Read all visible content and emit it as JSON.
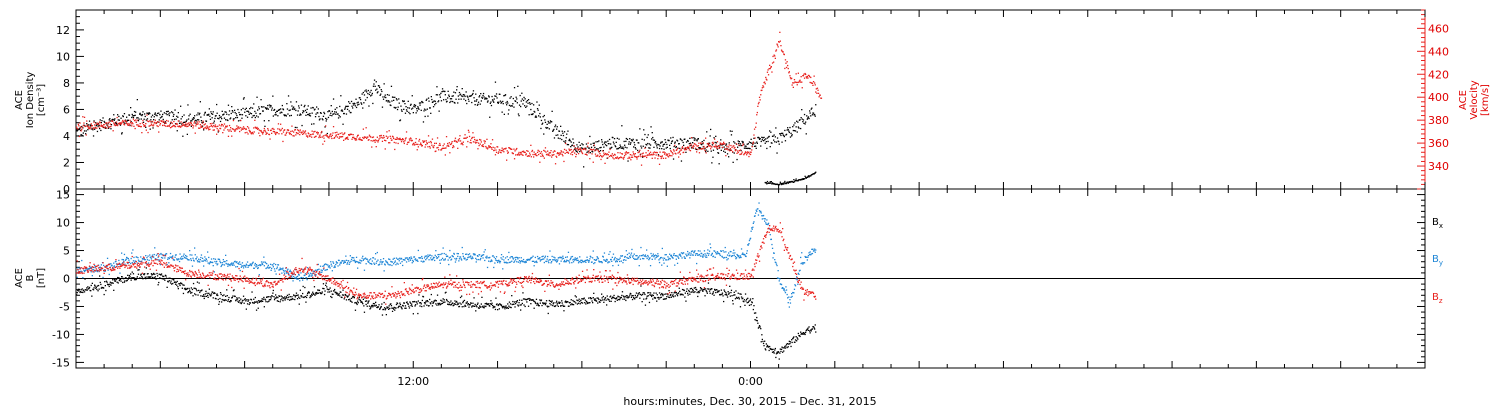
{
  "colors": {
    "black": "#000000",
    "red": "#e8221e",
    "blue": "#1f86d6"
  },
  "chart_data": [
    {
      "type": "scatter",
      "panel": "top",
      "ylabel_lines": [
        "ACE",
        "Ion Density",
        "[cm⁻³]"
      ],
      "ylim": [
        0,
        13.5
      ],
      "yticks": [
        0,
        2,
        4,
        6,
        8,
        10,
        12
      ],
      "y2label_lines": [
        "ACE",
        "Velocity",
        "[km/s]"
      ],
      "y2lim": [
        320,
        476
      ],
      "y2ticks": [
        340,
        360,
        380,
        400,
        420,
        440,
        460
      ],
      "x_hours_range": [
        0,
        48
      ],
      "series": [
        {
          "color": "#000000",
          "axis": "left",
          "spread": 0.45,
          "x": [
            0,
            1,
            2,
            3,
            4,
            5,
            6,
            7,
            8,
            9,
            10,
            10.6,
            11,
            12,
            13,
            14,
            15,
            16,
            17,
            18,
            19,
            20,
            21,
            22,
            23,
            24,
            24.5,
            25,
            25.5,
            26.3
          ],
          "y": [
            4.3,
            5.0,
            5.5,
            5.5,
            5.3,
            5.5,
            5.7,
            6.0,
            6.0,
            5.5,
            6.5,
            7.8,
            6.8,
            6.0,
            7.0,
            6.8,
            6.8,
            6.5,
            4.5,
            3.0,
            3.5,
            3.5,
            3.5,
            3.5,
            3.0,
            3.5,
            3.5,
            3.8,
            4.5,
            6.0
          ]
        },
        {
          "color": "#000000",
          "axis": "left",
          "spread": 0.05,
          "x": [
            24.5,
            25.0,
            25.5,
            26.0,
            26.3
          ],
          "y": [
            0.5,
            0.4,
            0.6,
            0.9,
            1.3
          ]
        },
        {
          "color": "#e8221e",
          "axis": "right",
          "spread": 3,
          "x": [
            0,
            2,
            4,
            6,
            8,
            10,
            12,
            13,
            14,
            15,
            16,
            17,
            18,
            19,
            20,
            21,
            22,
            23,
            24,
            24.3,
            25,
            25.5,
            26,
            26.5
          ],
          "y": [
            375,
            378,
            377,
            372,
            369,
            366,
            362,
            357,
            364,
            355,
            352,
            351,
            354,
            350,
            350,
            350,
            358,
            359,
            350,
            400,
            450,
            410,
            420,
            400
          ]
        }
      ]
    },
    {
      "type": "scatter",
      "panel": "bottom",
      "ylabel_lines": [
        "ACE",
        "B",
        "[nT]"
      ],
      "ylim": [
        -16,
        16
      ],
      "yticks": [
        -15,
        -10,
        -5,
        0,
        5,
        10,
        15
      ],
      "x_hours_range": [
        0,
        48
      ],
      "xticks": [
        {
          "hour": 12,
          "label": "12:00"
        },
        {
          "hour": 24,
          "label": "0:00"
        }
      ],
      "xlabel": "hours:minutes, Dec. 30, 2015 – Dec. 31, 2015",
      "zero_line": true,
      "series": [
        {
          "name": "Bx",
          "color": "#000000",
          "spread": 0.6,
          "x": [
            0,
            1,
            2,
            3,
            4,
            5,
            6,
            7,
            8,
            9,
            10,
            11,
            12,
            13,
            14,
            15,
            16,
            17,
            18,
            19,
            20,
            21,
            22,
            23,
            23.5,
            24,
            24.5,
            25,
            25.5,
            26,
            26.3
          ],
          "y": [
            -2,
            -1,
            0.5,
            0.5,
            -2,
            -3,
            -4,
            -3.5,
            -3,
            -2,
            -4,
            -5,
            -4.5,
            -4,
            -4.5,
            -5,
            -4,
            -4.5,
            -4,
            -3.5,
            -3,
            -3,
            -2,
            -2.5,
            -3,
            -4,
            -12,
            -13,
            -11,
            -9,
            -9
          ]
        },
        {
          "name": "By",
          "color": "#1f86d6",
          "spread": 0.6,
          "x": [
            0,
            1,
            2,
            3,
            4,
            5,
            6,
            7,
            8,
            9,
            10,
            11,
            12,
            13,
            14,
            15,
            16,
            17,
            18,
            19,
            20,
            21,
            22,
            23,
            23.8,
            24.2,
            24.6,
            25,
            25.4,
            25.8,
            26.3
          ],
          "y": [
            1.5,
            2.0,
            3.5,
            4.0,
            4.0,
            3.0,
            2.5,
            2.5,
            0,
            2.5,
            3.5,
            3.0,
            3.5,
            4.0,
            4.0,
            3.5,
            3.5,
            3.5,
            3.5,
            3.5,
            4.0,
            4.0,
            4.5,
            4.5,
            4.0,
            12.5,
            10,
            0,
            -4,
            3,
            5.5
          ]
        },
        {
          "name": "Bz",
          "color": "#e8221e",
          "spread": 0.6,
          "x": [
            0,
            1,
            2,
            3,
            4,
            5,
            6,
            7,
            8,
            9,
            10,
            11,
            12,
            13,
            14,
            15,
            16,
            17,
            18,
            19,
            20,
            21,
            22,
            23,
            24,
            24.3,
            24.6,
            25,
            25.4,
            25.8,
            26.3
          ],
          "y": [
            1.5,
            2.0,
            2.5,
            3.0,
            1.0,
            0.5,
            0.0,
            -1.0,
            2.0,
            0,
            -3.0,
            -3.0,
            -2.0,
            -1.0,
            -1.0,
            -1.0,
            0.0,
            -1.0,
            0.0,
            0.0,
            -0.5,
            -1.0,
            0.0,
            0.5,
            0.5,
            5.0,
            8.5,
            9.0,
            4.0,
            -2.0,
            -3.0
          ]
        }
      ]
    }
  ],
  "legend": {
    "bx_base": "B",
    "bx_sub": "x",
    "by_base": "B",
    "by_sub": "y",
    "bz_base": "B",
    "bz_sub": "z"
  }
}
